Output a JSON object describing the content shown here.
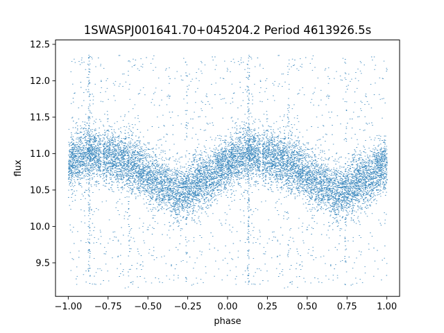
{
  "chart_data": {
    "type": "scatter",
    "title": "1SWASPJ001641.70+045204.2 Period 4613926.5s",
    "xlabel": "phase",
    "ylabel": "flux",
    "xlim": [
      -1.08,
      1.08
    ],
    "ylim": [
      9.04,
      12.56
    ],
    "x_ticks": [
      -1.0,
      -0.75,
      -0.5,
      -0.25,
      0.0,
      0.25,
      0.5,
      0.75,
      1.0
    ],
    "x_tick_labels": [
      "−1.00",
      "−0.75",
      "−0.50",
      "−0.25",
      "0.00",
      "0.25",
      "0.50",
      "0.75",
      "1.00"
    ],
    "y_ticks": [
      9.5,
      10.0,
      10.5,
      11.0,
      11.5,
      12.0,
      12.5
    ],
    "y_tick_labels": [
      "9.5",
      "10.0",
      "10.5",
      "11.0",
      "11.5",
      "12.0",
      "12.5"
    ],
    "grid": false,
    "marker_color": "#1f77b4",
    "light_curve": {
      "phase": [
        0.0,
        0.05,
        0.1,
        0.15,
        0.2,
        0.25,
        0.3,
        0.35,
        0.4,
        0.45,
        0.5,
        0.55,
        0.6,
        0.65,
        0.7,
        0.75,
        0.8,
        0.85,
        0.9,
        0.95,
        1.0
      ],
      "median_flux": [
        10.85,
        10.95,
        11.0,
        11.0,
        10.98,
        10.95,
        10.92,
        10.88,
        10.82,
        10.76,
        10.7,
        10.62,
        10.55,
        10.5,
        10.48,
        10.52,
        10.58,
        10.62,
        10.7,
        10.8,
        10.85
      ],
      "scatter": 0.18
    },
    "dense_phase_columns": [
      -0.87,
      0.13,
      -0.62,
      0.38,
      -0.26,
      0.74
    ],
    "point_count": 16000
  }
}
